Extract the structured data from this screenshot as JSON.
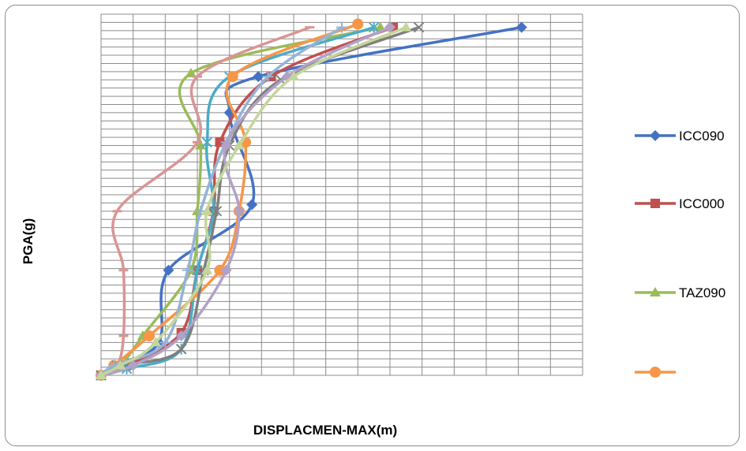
{
  "chart_data": {
    "type": "line",
    "xlabel": "DISPLACMEN-MAX(m)",
    "ylabel": "PGA(g)",
    "xlim": [
      0,
      1.5
    ],
    "ylim": [
      0,
      1.1
    ],
    "grid": true,
    "legend_position": "right",
    "series": [
      {
        "name": "ICC090",
        "color": "#4472C4",
        "marker": "diamond",
        "legend": true,
        "points": [
          [
            0,
            0
          ],
          [
            0.04,
            0.03
          ],
          [
            0.18,
            0.1
          ],
          [
            0.21,
            0.32
          ],
          [
            0.47,
            0.52
          ],
          [
            0.4,
            0.8
          ],
          [
            0.49,
            0.91
          ],
          [
            1.31,
            1.06
          ]
        ]
      },
      {
        "name": "ICC000",
        "color": "#C0504D",
        "marker": "square",
        "legend": true,
        "points": [
          [
            0,
            0
          ],
          [
            0.08,
            0.03
          ],
          [
            0.25,
            0.13
          ],
          [
            0.3,
            0.32
          ],
          [
            0.35,
            0.5
          ],
          [
            0.37,
            0.71
          ],
          [
            0.53,
            0.91
          ],
          [
            0.91,
            1.06
          ]
        ]
      },
      {
        "name": "TAZ090",
        "color": "#9BBB59",
        "marker": "triangle",
        "legend": true,
        "points": [
          [
            0,
            0
          ],
          [
            0.06,
            0.03
          ],
          [
            0.13,
            0.12
          ],
          [
            0.28,
            0.32
          ],
          [
            0.3,
            0.5
          ],
          [
            0.31,
            0.7
          ],
          [
            0.28,
            0.92
          ],
          [
            0.87,
            1.06
          ]
        ]
      },
      {
        "name": "",
        "color": "#4BACC6",
        "marker": "star",
        "legend": false,
        "points": [
          [
            0,
            0
          ],
          [
            0.08,
            0.02
          ],
          [
            0.25,
            0.08
          ],
          [
            0.3,
            0.32
          ],
          [
            0.35,
            0.5
          ],
          [
            0.33,
            0.71
          ],
          [
            0.4,
            0.91
          ],
          [
            0.85,
            1.06
          ]
        ]
      },
      {
        "name": "",
        "color": "#F79646",
        "marker": "circle",
        "legend": true,
        "points": [
          [
            0,
            0
          ],
          [
            0.04,
            0.03
          ],
          [
            0.15,
            0.12
          ],
          [
            0.37,
            0.32
          ],
          [
            0.43,
            0.5
          ],
          [
            0.45,
            0.71
          ],
          [
            0.41,
            0.91
          ],
          [
            0.8,
            1.07
          ]
        ]
      },
      {
        "name": "",
        "color": "#7F7F7F",
        "marker": "x",
        "legend": false,
        "points": [
          [
            0,
            0
          ],
          [
            0.05,
            0.03
          ],
          [
            0.25,
            0.08
          ],
          [
            0.32,
            0.32
          ],
          [
            0.36,
            0.5
          ],
          [
            0.4,
            0.7
          ],
          [
            0.56,
            0.9
          ],
          [
            0.99,
            1.06
          ]
        ]
      },
      {
        "name": "",
        "color": "#D99594",
        "marker": "dash",
        "legend": false,
        "points": [
          [
            0,
            0
          ],
          [
            0.05,
            0.03
          ],
          [
            0.07,
            0.12
          ],
          [
            0.07,
            0.32
          ],
          [
            0.05,
            0.5
          ],
          [
            0.3,
            0.71
          ],
          [
            0.3,
            0.91
          ],
          [
            0.65,
            1.06
          ]
        ]
      },
      {
        "name": "",
        "color": "#95B3D7",
        "marker": "plus",
        "legend": false,
        "points": [
          [
            0,
            0
          ],
          [
            0.04,
            0.03
          ],
          [
            0.2,
            0.1
          ],
          [
            0.27,
            0.32
          ],
          [
            0.31,
            0.5
          ],
          [
            0.39,
            0.71
          ],
          [
            0.52,
            0.91
          ],
          [
            0.75,
            1.06
          ]
        ]
      },
      {
        "name": "",
        "color": "#B2A1C7",
        "marker": "diamond",
        "legend": false,
        "points": [
          [
            0,
            0
          ],
          [
            0.1,
            0.03
          ],
          [
            0.25,
            0.12
          ],
          [
            0.39,
            0.32
          ],
          [
            0.43,
            0.5
          ],
          [
            0.39,
            0.7
          ],
          [
            0.58,
            0.91
          ],
          [
            0.9,
            1.06
          ]
        ]
      },
      {
        "name": "",
        "color": "#C3D69B",
        "marker": "triangle",
        "legend": false,
        "points": [
          [
            0,
            0
          ],
          [
            0.06,
            0.03
          ],
          [
            0.17,
            0.1
          ],
          [
            0.33,
            0.32
          ],
          [
            0.33,
            0.5
          ],
          [
            0.43,
            0.7
          ],
          [
            0.6,
            0.91
          ],
          [
            0.95,
            1.06
          ]
        ]
      }
    ]
  }
}
